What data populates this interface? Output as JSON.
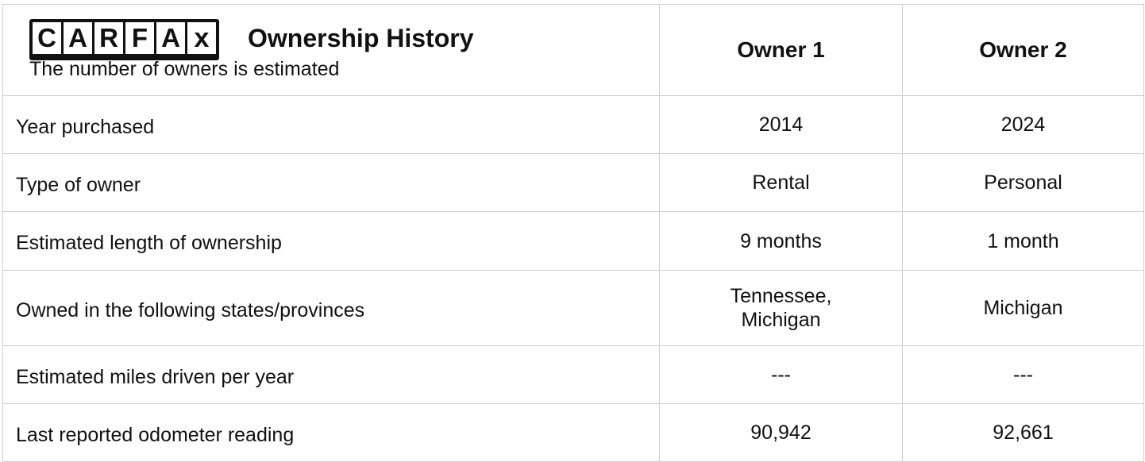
{
  "header": {
    "logo": [
      "C",
      "A",
      "R",
      "F",
      "A",
      "x"
    ],
    "title": "Ownership History",
    "subtitle": "The number of owners is estimated",
    "owners": [
      "Owner 1",
      "Owner 2"
    ]
  },
  "table": {
    "rows": [
      [
        "Year purchased",
        "2014",
        "2024"
      ],
      [
        "Type of owner",
        "Rental",
        "Personal"
      ],
      [
        "Estimated length of ownership",
        "9 months",
        "1 month"
      ],
      [
        "Owned in the following states/provinces",
        "Tennessee, Michigan",
        "Michigan"
      ],
      [
        "Estimated miles driven per year",
        "---",
        "---"
      ],
      [
        "Last reported odometer reading",
        "90,942",
        "92,661"
      ]
    ]
  }
}
